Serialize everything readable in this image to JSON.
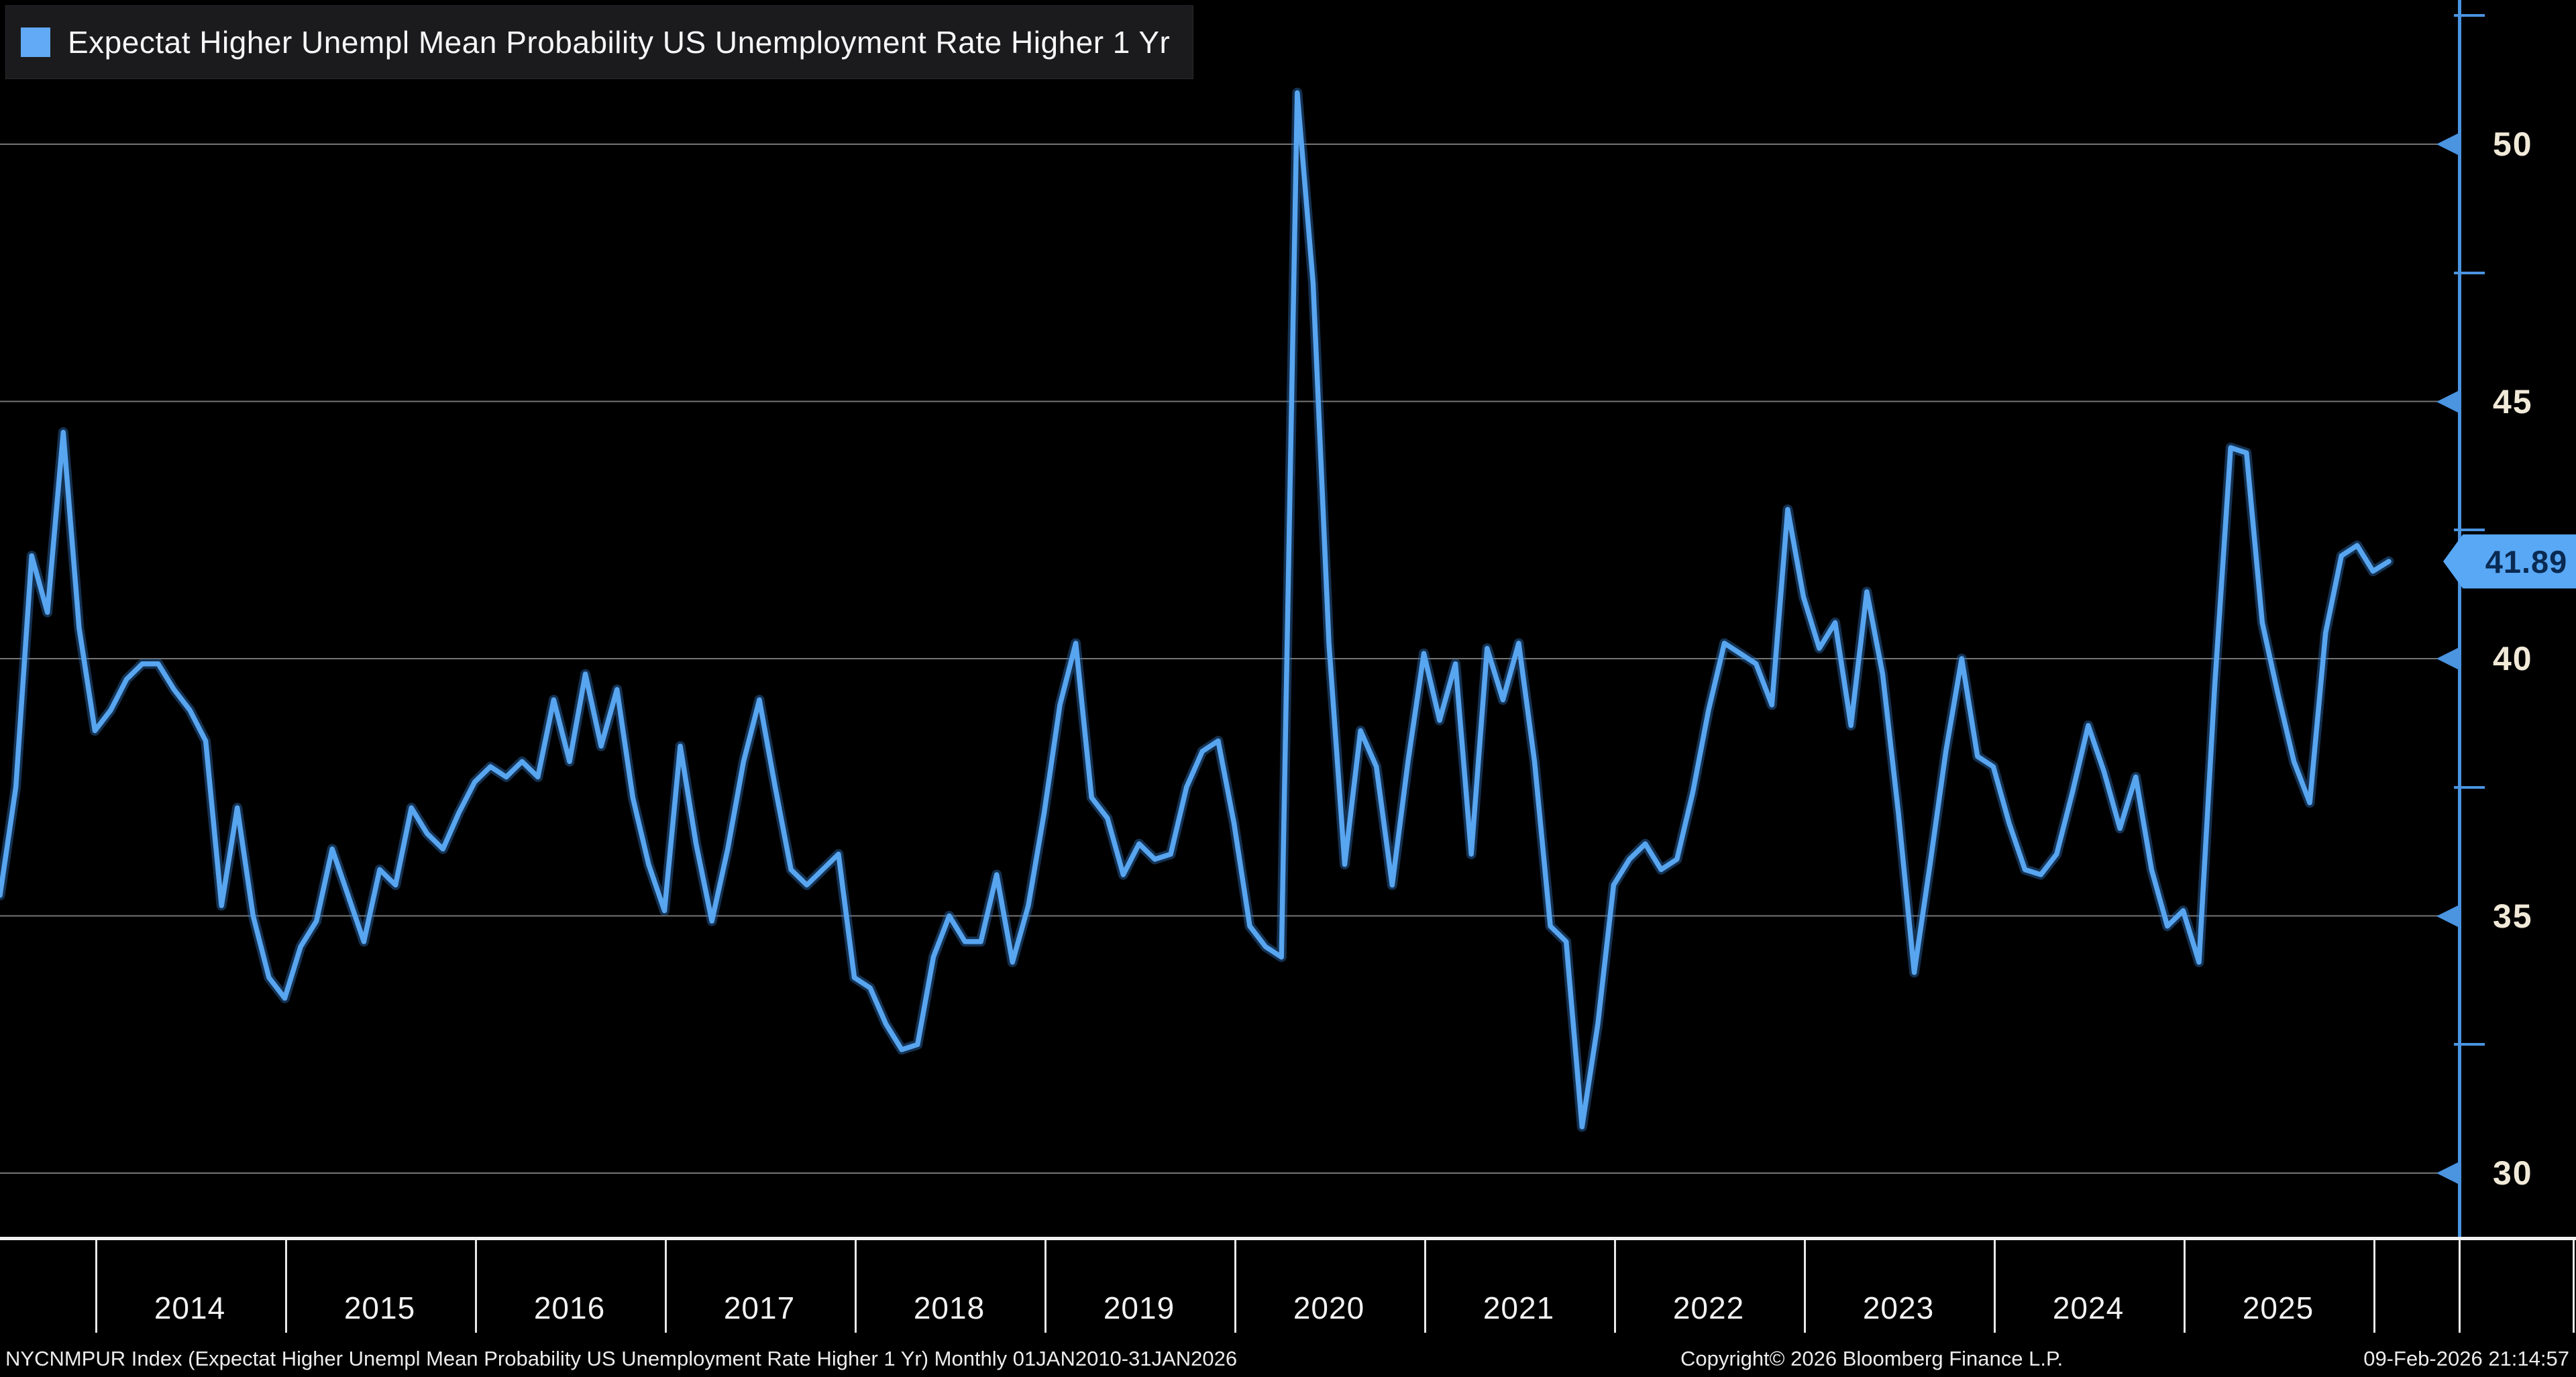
{
  "legend": {
    "label": "Expectat Higher Unempl Mean Probability US Unemployment Rate Higher 1 Yr",
    "swatch_color": "#62aaf5"
  },
  "footer": {
    "left": "NYCNMPUR Index (Expectat Higher Unempl Mean Probability US Unemployment Rate Higher 1 Yr) Monthly 01JAN2010-31JAN2026",
    "copyright": "Copyright© 2026 Bloomberg Finance L.P.",
    "timestamp": "09-Feb-2026 21:14:57"
  },
  "colors": {
    "background": "#000000",
    "line": "#58a5f0",
    "line_glow": "#2d6cb4",
    "grid": "#757575",
    "axis": "#4a94e0",
    "axis_label": "#f1ead9",
    "year_label": "#f2f2f2",
    "callout_bg": "#58a8f5",
    "callout_text": "#0a2a52"
  },
  "chart_data": {
    "type": "line",
    "title": "Expectat Higher Unempl Mean Probability US Unemployment Rate Higher 1 Yr",
    "security": "NYCNMPUR Index",
    "frequency": "Monthly",
    "period_shown_start": "2013-06",
    "period_shown_end": "2026-01",
    "legend_position": "top-left",
    "grid": "horizontal",
    "ylabel": "",
    "xlabel": "",
    "ylim": [
      28.7,
      52.8
    ],
    "y_ticks": [
      30,
      35,
      40,
      45,
      50
    ],
    "y_minor_ticks": [
      32.5,
      37.5,
      42.5,
      47.5,
      52.5
    ],
    "x_tick_labels": [
      "2014",
      "2015",
      "2016",
      "2017",
      "2018",
      "2019",
      "2020",
      "2021",
      "2022",
      "2023",
      "2024",
      "2025"
    ],
    "last_value": 41.89,
    "last_value_label": "41.89",
    "series": [
      {
        "name": "Expectat Higher Unempl Mean Probability US Unemployment Rate Higher 1 Yr",
        "start_month": "2013-06",
        "values": [
          35.4,
          37.5,
          42.0,
          40.9,
          44.4,
          40.6,
          38.6,
          39.0,
          39.6,
          39.9,
          39.9,
          39.4,
          39.0,
          38.4,
          35.2,
          37.1,
          35.0,
          33.8,
          33.4,
          34.4,
          34.9,
          36.3,
          35.4,
          34.5,
          35.9,
          35.6,
          37.1,
          36.6,
          36.3,
          37.0,
          37.6,
          37.9,
          37.7,
          38.0,
          37.7,
          39.2,
          38.0,
          39.7,
          38.3,
          39.4,
          37.3,
          36.0,
          35.1,
          38.3,
          36.4,
          34.9,
          36.3,
          38.0,
          39.2,
          37.5,
          35.9,
          35.6,
          35.9,
          36.2,
          33.8,
          33.6,
          32.9,
          32.4,
          32.5,
          34.2,
          35.0,
          34.5,
          34.5,
          35.8,
          34.1,
          35.2,
          37.0,
          39.1,
          40.3,
          37.3,
          36.9,
          35.8,
          36.4,
          36.1,
          36.2,
          37.5,
          38.2,
          38.4,
          36.8,
          34.8,
          34.4,
          34.2,
          51.0,
          47.3,
          40.3,
          36.0,
          38.6,
          37.9,
          35.6,
          38.0,
          40.1,
          38.8,
          39.9,
          36.2,
          40.2,
          39.2,
          40.3,
          38.0,
          34.8,
          34.5,
          30.9,
          32.9,
          35.6,
          36.1,
          36.4,
          35.9,
          36.1,
          37.4,
          39.0,
          40.3,
          40.1,
          39.9,
          39.1,
          42.9,
          41.2,
          40.2,
          40.7,
          38.7,
          41.3,
          39.7,
          37.0,
          33.9,
          36.0,
          38.2,
          40.0,
          38.1,
          37.9,
          36.8,
          35.9,
          35.8,
          36.2,
          37.4,
          38.7,
          37.8,
          36.7,
          37.7,
          35.9,
          34.8,
          35.1,
          34.1,
          39.5,
          44.1,
          44.0,
          40.7,
          39.3,
          38.0,
          37.2,
          40.5,
          42.0,
          42.2,
          41.7,
          41.89
        ]
      }
    ]
  }
}
